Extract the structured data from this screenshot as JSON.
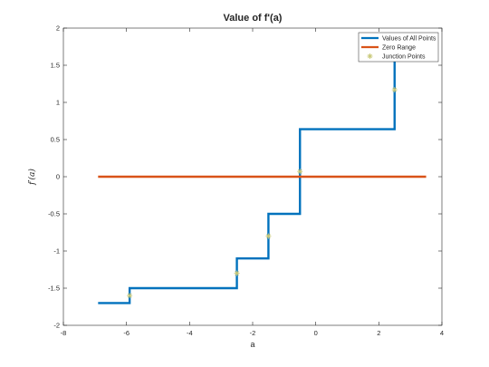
{
  "chart_data": {
    "type": "line",
    "title": "Value of f'(a)",
    "xlabel": "a",
    "ylabel": "f′(a)",
    "xlim": [
      -8,
      4
    ],
    "ylim": [
      -2,
      2
    ],
    "xticks": [
      -8,
      -6,
      -4,
      -2,
      0,
      2,
      4
    ],
    "yticks": [
      -2,
      -1.5,
      -1,
      -0.5,
      0,
      0.5,
      1,
      1.5,
      2
    ],
    "grid": false,
    "legend_position": "top-right",
    "series": [
      {
        "name": "Values of All Points",
        "color": "#0072BD",
        "style": "line",
        "x": [
          -6.9,
          -5.9,
          -5.9,
          -2.5,
          -2.5,
          -1.5,
          -1.5,
          -0.5,
          -0.5,
          2.5,
          2.5
        ],
        "y": [
          -1.7,
          -1.7,
          -1.5,
          -1.5,
          -1.1,
          -1.1,
          -0.5,
          -0.5,
          0.64,
          0.64,
          1.6
        ]
      },
      {
        "name": "Zero Range",
        "color": "#D95319",
        "style": "line",
        "x": [
          -6.9,
          3.5
        ],
        "y": [
          0,
          0
        ]
      },
      {
        "name": "Junction Points",
        "color": "#C8C878",
        "style": "marker",
        "x": [
          -5.9,
          -2.5,
          -1.5,
          -0.5,
          2.5
        ],
        "y": [
          -1.6,
          -1.3,
          -0.8,
          0.07,
          1.17
        ]
      }
    ]
  }
}
